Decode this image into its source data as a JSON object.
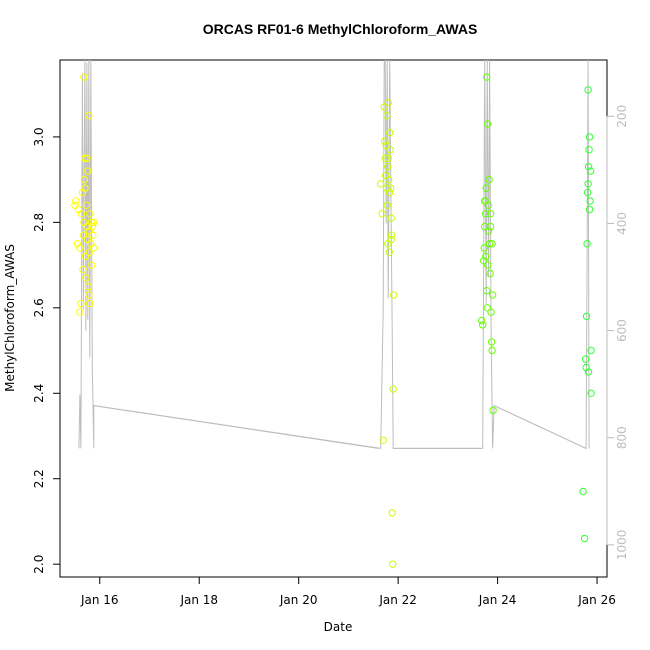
{
  "chart_data": {
    "type": "scatter",
    "title": "ORCAS RF01-6 MethylChloroform_AWAS",
    "xlabel": "Date",
    "ylabel": "MethylChloroform_AWAS",
    "x_ticks": [
      {
        "day": 16,
        "label": "Jan 16"
      },
      {
        "day": 18,
        "label": "Jan 18"
      },
      {
        "day": 20,
        "label": "Jan 20"
      },
      {
        "day": 22,
        "label": "Jan 22"
      },
      {
        "day": 24,
        "label": "Jan 24"
      },
      {
        "day": 26,
        "label": "Jan 26"
      }
    ],
    "xlim": [
      15.2,
      26.2
    ],
    "ylim": [
      1.97,
      3.18
    ],
    "y_ticks": [
      2.0,
      2.2,
      2.4,
      2.6,
      2.8,
      3.0
    ],
    "right_axis": {
      "ticks": [
        200,
        400,
        600,
        800,
        1000
      ],
      "range": [
        95,
        1060
      ],
      "color": "#bdbdbd"
    },
    "grid": false,
    "legend": "none",
    "point_colors": [
      "#ffff00",
      "#c8ff00",
      "#66ff00",
      "#33ff33"
    ],
    "series": [
      {
        "color": "#ffff00",
        "points": [
          [
            15.5,
            2.84
          ],
          [
            15.52,
            2.85
          ],
          [
            15.55,
            2.75
          ],
          [
            15.57,
            2.83
          ],
          [
            15.6,
            2.74
          ],
          [
            15.6,
            2.59
          ],
          [
            15.62,
            2.61
          ],
          [
            15.63,
            2.82
          ],
          [
            15.65,
            2.87
          ],
          [
            15.66,
            2.69
          ],
          [
            15.68,
            2.8
          ],
          [
            15.68,
            3.14
          ],
          [
            15.7,
            2.88
          ],
          [
            15.7,
            2.95
          ],
          [
            15.71,
            2.72
          ],
          [
            15.72,
            2.67
          ],
          [
            15.73,
            2.84
          ],
          [
            15.74,
            2.79
          ],
          [
            15.75,
            2.76
          ],
          [
            15.76,
            2.92
          ],
          [
            15.77,
            2.65
          ],
          [
            15.78,
            3.05
          ],
          [
            15.78,
            2.63
          ],
          [
            15.79,
            2.78
          ],
          [
            15.8,
            2.82
          ],
          [
            15.8,
            2.61
          ],
          [
            15.82,
            2.75
          ],
          [
            15.83,
            2.8
          ],
          [
            15.84,
            2.7
          ],
          [
            15.85,
            2.79
          ],
          [
            15.86,
            2.77
          ],
          [
            15.87,
            2.74
          ],
          [
            15.88,
            2.8
          ],
          [
            15.69,
            2.9
          ],
          [
            15.67,
            2.77
          ],
          [
            15.74,
            2.95
          ],
          [
            15.79,
            2.73
          ]
        ]
      },
      {
        "color": "#c8ff00",
        "points": [
          [
            21.65,
            2.89
          ],
          [
            21.68,
            2.82
          ],
          [
            21.7,
            2.29
          ],
          [
            21.72,
            3.07
          ],
          [
            21.73,
            2.99
          ],
          [
            21.74,
            2.95
          ],
          [
            21.75,
            2.91
          ],
          [
            21.76,
            2.98
          ],
          [
            21.77,
            2.88
          ],
          [
            21.78,
            2.84
          ],
          [
            21.79,
            2.75
          ],
          [
            21.8,
            3.08
          ],
          [
            21.8,
            2.95
          ],
          [
            21.81,
            2.9
          ],
          [
            21.82,
            2.73
          ],
          [
            21.83,
            2.87
          ],
          [
            21.84,
            2.97
          ],
          [
            21.85,
            2.88
          ],
          [
            21.86,
            2.81
          ],
          [
            21.87,
            2.77
          ],
          [
            21.88,
            2.12
          ],
          [
            21.89,
            2.0
          ],
          [
            21.9,
            2.41
          ],
          [
            21.91,
            2.63
          ],
          [
            21.77,
            3.05
          ],
          [
            21.79,
            2.93
          ],
          [
            21.83,
            3.01
          ],
          [
            21.86,
            2.76
          ]
        ]
      },
      {
        "color": "#66ff00",
        "points": [
          [
            23.68,
            2.57
          ],
          [
            23.7,
            2.56
          ],
          [
            23.72,
            2.71
          ],
          [
            23.73,
            2.74
          ],
          [
            23.74,
            2.79
          ],
          [
            23.75,
            2.85
          ],
          [
            23.76,
            2.82
          ],
          [
            23.77,
            2.88
          ],
          [
            23.78,
            2.64
          ],
          [
            23.78,
            3.14
          ],
          [
            23.79,
            2.6
          ],
          [
            23.8,
            3.03
          ],
          [
            23.8,
            2.7
          ],
          [
            23.81,
            2.84
          ],
          [
            23.82,
            2.78
          ],
          [
            23.83,
            2.9
          ],
          [
            23.84,
            2.75
          ],
          [
            23.85,
            2.68
          ],
          [
            23.86,
            2.79
          ],
          [
            23.87,
            2.59
          ],
          [
            23.88,
            2.52
          ],
          [
            23.89,
            2.5
          ],
          [
            23.9,
            2.63
          ],
          [
            23.91,
            2.36
          ],
          [
            23.76,
            2.72
          ],
          [
            23.74,
            2.85
          ],
          [
            23.86,
            2.82
          ],
          [
            23.89,
            2.75
          ]
        ]
      },
      {
        "color": "#33ff33",
        "points": [
          [
            25.72,
            2.17
          ],
          [
            25.75,
            2.06
          ],
          [
            25.77,
            2.48
          ],
          [
            25.78,
            2.46
          ],
          [
            25.79,
            2.58
          ],
          [
            25.8,
            2.75
          ],
          [
            25.81,
            2.87
          ],
          [
            25.82,
            2.89
          ],
          [
            25.82,
            3.11
          ],
          [
            25.83,
            2.93
          ],
          [
            25.84,
            2.97
          ],
          [
            25.85,
            3.0
          ],
          [
            25.85,
            2.83
          ],
          [
            25.86,
            2.85
          ],
          [
            25.87,
            2.92
          ],
          [
            25.88,
            2.4
          ],
          [
            25.88,
            2.5
          ],
          [
            25.83,
            2.45
          ]
        ]
      }
    ],
    "altitude_line": {
      "color": "#bdbdbd",
      "points": [
        [
          15.58,
          820
        ],
        [
          15.6,
          720
        ],
        [
          15.62,
          820
        ],
        [
          15.65,
          120
        ],
        [
          15.67,
          560
        ],
        [
          15.7,
          95
        ],
        [
          15.72,
          600
        ],
        [
          15.74,
          100
        ],
        [
          15.76,
          580
        ],
        [
          15.78,
          95
        ],
        [
          15.8,
          650
        ],
        [
          15.82,
          95
        ],
        [
          15.85,
          670
        ],
        [
          15.88,
          820
        ],
        [
          15.88,
          740
        ],
        [
          21.65,
          820
        ],
        [
          21.7,
          560
        ],
        [
          21.72,
          100
        ],
        [
          21.74,
          95
        ],
        [
          21.76,
          400
        ],
        [
          21.78,
          95
        ],
        [
          21.8,
          540
        ],
        [
          21.83,
          95
        ],
        [
          21.86,
          400
        ],
        [
          21.88,
          600
        ],
        [
          21.9,
          820
        ],
        [
          23.7,
          820
        ],
        [
          23.74,
          95
        ],
        [
          23.77,
          550
        ],
        [
          23.79,
          95
        ],
        [
          23.82,
          500
        ],
        [
          23.84,
          95
        ],
        [
          23.87,
          600
        ],
        [
          23.9,
          820
        ],
        [
          23.93,
          740
        ],
        [
          25.78,
          820
        ],
        [
          25.82,
          95
        ],
        [
          25.84,
          820
        ]
      ],
      "flight_segments": [
        [
          [
            15.88,
            740
          ],
          [
            21.6,
            820
          ]
        ],
        [
          [
            21.9,
            820
          ],
          [
            23.68,
            820
          ]
        ],
        [
          [
            23.93,
            740
          ],
          [
            25.78,
            820
          ]
        ]
      ]
    }
  }
}
